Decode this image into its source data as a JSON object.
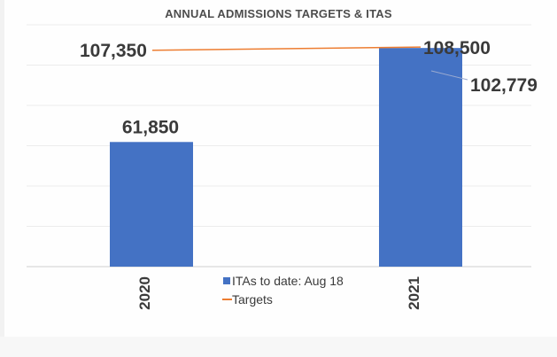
{
  "chart_data": {
    "type": "bar",
    "title": "ANNUAL ADMISSIONS TARGETS & ITAS",
    "categories": [
      "2020",
      "2021"
    ],
    "ylim": [
      0,
      120000
    ],
    "grid": true,
    "legend_position": "bottom-center",
    "series": [
      {
        "name": "ITAs to date: Aug 18",
        "type": "bar",
        "color": "#4472c4",
        "values": [
          61850,
          108500
        ],
        "labels": [
          "61,850",
          "108,500"
        ]
      },
      {
        "name": "Targets",
        "type": "line",
        "color": "#ed7d31",
        "values": [
          107350,
          108500
        ],
        "labels": [
          "107,350",
          "108,500"
        ]
      }
    ],
    "annotations": [
      {
        "text": "102,779",
        "points_to": "2021"
      }
    ]
  }
}
